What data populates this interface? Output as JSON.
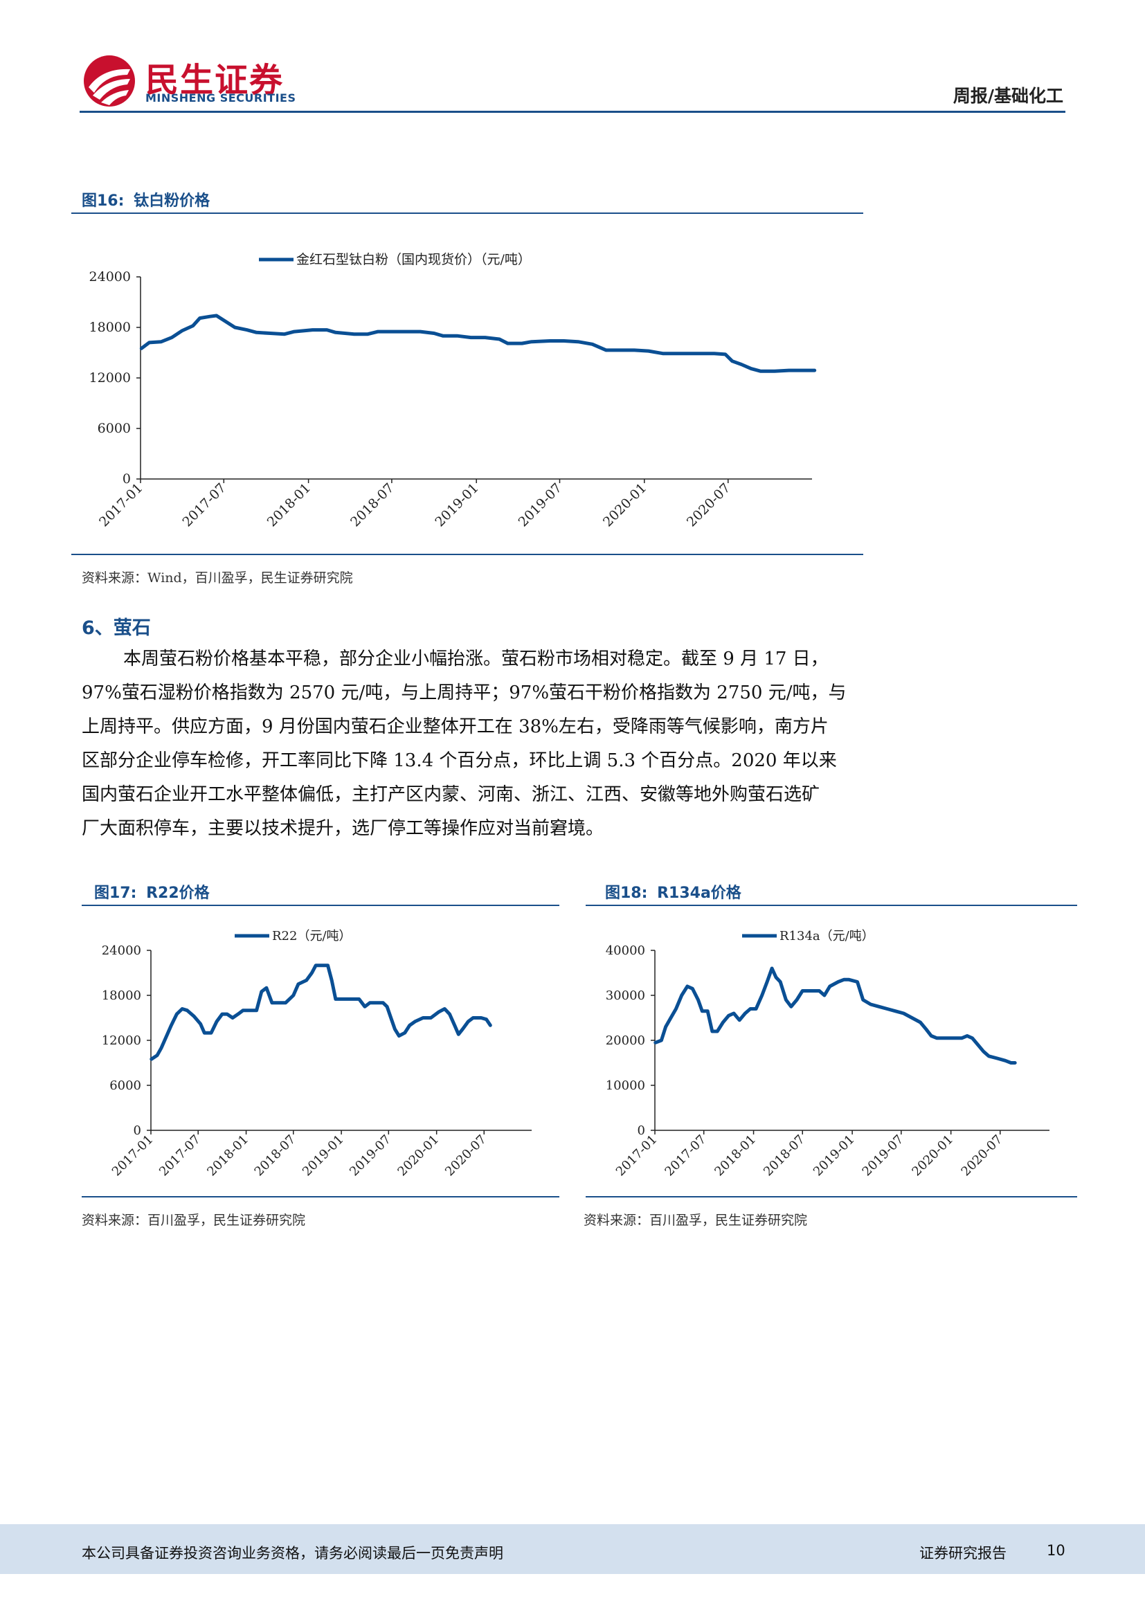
{
  "header": {
    "logo_cn": "民生证券",
    "logo_en": "MINSHENG SECURITIES",
    "category": "周报/基础化工",
    "colors": {
      "brand_red": "#c8102e",
      "brand_blue": "#1a4f8a"
    }
  },
  "figure16": {
    "label": "图16:",
    "title": "钛白粉价格",
    "source": "资料来源：Wind，百川盈孚，民生证券研究院"
  },
  "figure17": {
    "label": "图17:",
    "title": "R22价格",
    "source": "资料来源：百川盈孚，民生证券研究院"
  },
  "figure18": {
    "label": "图18:",
    "title": "R134a价格",
    "source": "资料来源：百川盈孚，民生证券研究院"
  },
  "section": {
    "heading": "6、萤石",
    "paragraph_lines": [
      "本周萤石粉价格基本平稳，部分企业小幅抬涨。萤石粉市场相对稳定。截至 9 月 17 日，",
      "97%萤石湿粉价格指数为 2570 元/吨，与上周持平；97%萤石干粉价格指数为 2750 元/吨，与",
      "上周持平。供应方面，9 月份国内萤石企业整体开工在 38%左右，受降雨等气候影响，南方片",
      "区部分企业停车检修，开工率同比下降 13.4 个百分点，环比上调 5.3 个百分点。2020 年以来",
      "国内萤石企业开工水平整体偏低，主打产区内蒙、河南、浙江、江西、安徽等地外购萤石选矿",
      "厂大面积停车，主要以技术提升，选厂停工等操作应对当前窘境。"
    ]
  },
  "footer": {
    "disclaimer": "本公司具备证券投资咨询业务资格，请务必阅读最后一页免责声明",
    "report_type": "证券研究报告",
    "page_number": "10"
  },
  "chart_data": [
    {
      "id": "fig16",
      "type": "line",
      "title": "",
      "xlabel": "",
      "ylabel": "",
      "ylim": [
        0,
        24000
      ],
      "yticks": [
        "0",
        "6000",
        "12000",
        "18000",
        "24000"
      ],
      "xtick_labels": [
        "2017-01",
        "2017-07",
        "2018-01",
        "2018-07",
        "2019-01",
        "2019-07",
        "2020-01",
        "2020-07"
      ],
      "legend": "top",
      "grid": false,
      "series": [
        {
          "name": "金红石型钛白粉（国内现货价）（元/吨）",
          "color": "#0a4f94",
          "points": [
            [
              "2017-01-03",
              15500
            ],
            [
              "2017-01-20",
              16200
            ],
            [
              "2017-02-15",
              16300
            ],
            [
              "2017-03-10",
              16800
            ],
            [
              "2017-04-01",
              17600
            ],
            [
              "2017-04-25",
              18200
            ],
            [
              "2017-05-10",
              19100
            ],
            [
              "2017-06-01",
              19300
            ],
            [
              "2017-06-15",
              19400
            ],
            [
              "2017-07-05",
              18700
            ],
            [
              "2017-07-25",
              18000
            ],
            [
              "2017-08-20",
              17700
            ],
            [
              "2017-09-10",
              17400
            ],
            [
              "2017-10-10",
              17300
            ],
            [
              "2017-11-10",
              17200
            ],
            [
              "2017-12-01",
              17500
            ],
            [
              "2018-01-10",
              17700
            ],
            [
              "2018-02-10",
              17700
            ],
            [
              "2018-03-01",
              17400
            ],
            [
              "2018-04-10",
              17200
            ],
            [
              "2018-05-10",
              17200
            ],
            [
              "2018-06-01",
              17500
            ],
            [
              "2018-08-10",
              17500
            ],
            [
              "2018-09-01",
              17500
            ],
            [
              "2018-10-01",
              17300
            ],
            [
              "2018-10-20",
              17000
            ],
            [
              "2018-11-20",
              17000
            ],
            [
              "2018-12-20",
              16800
            ],
            [
              "2019-01-20",
              16800
            ],
            [
              "2019-02-20",
              16600
            ],
            [
              "2019-03-10",
              16100
            ],
            [
              "2019-04-10",
              16100
            ],
            [
              "2019-05-01",
              16300
            ],
            [
              "2019-06-10",
              16400
            ],
            [
              "2019-07-10",
              16400
            ],
            [
              "2019-08-10",
              16300
            ],
            [
              "2019-09-10",
              16000
            ],
            [
              "2019-10-10",
              15300
            ],
            [
              "2019-11-10",
              15300
            ],
            [
              "2019-12-10",
              15300
            ],
            [
              "2020-01-10",
              15200
            ],
            [
              "2020-02-10",
              14900
            ],
            [
              "2020-03-10",
              14900
            ],
            [
              "2020-04-10",
              14900
            ],
            [
              "2020-05-10",
              14900
            ],
            [
              "2020-06-01",
              14900
            ],
            [
              "2020-06-25",
              14800
            ],
            [
              "2020-07-10",
              14000
            ],
            [
              "2020-07-30",
              13600
            ],
            [
              "2020-08-20",
              13100
            ],
            [
              "2020-09-10",
              12800
            ],
            [
              "2020-10-10",
              12800
            ],
            [
              "2020-11-10",
              12900
            ],
            [
              "2020-12-10",
              12900
            ],
            [
              "2021-01-05",
              12900
            ]
          ]
        }
      ]
    },
    {
      "id": "fig17",
      "type": "line",
      "title": "",
      "xlabel": "",
      "ylabel": "",
      "ylim": [
        0,
        24000
      ],
      "yticks": [
        "0",
        "6000",
        "12000",
        "18000",
        "24000"
      ],
      "xtick_labels": [
        "2017-01",
        "2017-07",
        "2018-01",
        "2018-07",
        "2019-01",
        "2019-07",
        "2020-01",
        "2020-07"
      ],
      "legend": "top",
      "grid": false,
      "series": [
        {
          "name": "R22（元/吨）",
          "color": "#0a4f94",
          "points": [
            [
              "2017-01-03",
              9500
            ],
            [
              "2017-01-25",
              10000
            ],
            [
              "2017-02-10",
              11000
            ],
            [
              "2017-03-01",
              12500
            ],
            [
              "2017-03-20",
              14000
            ],
            [
              "2017-04-10",
              15500
            ],
            [
              "2017-05-01",
              16200
            ],
            [
              "2017-05-20",
              16000
            ],
            [
              "2017-06-15",
              15200
            ],
            [
              "2017-07-10",
              14200
            ],
            [
              "2017-07-25",
              13000
            ],
            [
              "2017-08-20",
              13000
            ],
            [
              "2017-09-10",
              14500
            ],
            [
              "2017-10-01",
              15500
            ],
            [
              "2017-10-20",
              15500
            ],
            [
              "2017-11-10",
              15000
            ],
            [
              "2017-12-01",
              15500
            ],
            [
              "2017-12-20",
              16000
            ],
            [
              "2018-01-10",
              16000
            ],
            [
              "2018-02-10",
              16000
            ],
            [
              "2018-03-01",
              18500
            ],
            [
              "2018-03-20",
              19000
            ],
            [
              "2018-04-10",
              17000
            ],
            [
              "2018-05-01",
              17000
            ],
            [
              "2018-06-01",
              17000
            ],
            [
              "2018-07-01",
              18000
            ],
            [
              "2018-07-20",
              19500
            ],
            [
              "2018-08-20",
              20000
            ],
            [
              "2018-09-10",
              21000
            ],
            [
              "2018-09-25",
              22000
            ],
            [
              "2018-10-20",
              22000
            ],
            [
              "2018-11-10",
              22000
            ],
            [
              "2018-11-25",
              20000
            ],
            [
              "2018-12-10",
              17500
            ],
            [
              "2019-01-10",
              17500
            ],
            [
              "2019-02-10",
              17500
            ],
            [
              "2019-03-10",
              17500
            ],
            [
              "2019-04-01",
              16500
            ],
            [
              "2019-04-20",
              17000
            ],
            [
              "2019-05-10",
              17000
            ],
            [
              "2019-06-10",
              17000
            ],
            [
              "2019-06-25",
              16500
            ],
            [
              "2019-07-10",
              15000
            ],
            [
              "2019-07-25",
              13500
            ],
            [
              "2019-08-10",
              12600
            ],
            [
              "2019-09-01",
              13000
            ],
            [
              "2019-09-20",
              14000
            ],
            [
              "2019-10-10",
              14500
            ],
            [
              "2019-11-10",
              15000
            ],
            [
              "2019-12-10",
              15000
            ],
            [
              "2020-01-10",
              15800
            ],
            [
              "2020-02-01",
              16200
            ],
            [
              "2020-02-20",
              15500
            ],
            [
              "2020-03-10",
              14000
            ],
            [
              "2020-03-25",
              12800
            ],
            [
              "2020-04-10",
              13500
            ],
            [
              "2020-05-01",
              14500
            ],
            [
              "2020-05-20",
              15000
            ],
            [
              "2020-06-20",
              15000
            ],
            [
              "2020-07-10",
              14800
            ],
            [
              "2020-07-25",
              14000
            ]
          ]
        }
      ]
    },
    {
      "id": "fig18",
      "type": "line",
      "title": "",
      "xlabel": "",
      "ylabel": "",
      "ylim": [
        0,
        40000
      ],
      "yticks": [
        "0",
        "10000",
        "20000",
        "30000",
        "40000"
      ],
      "xtick_labels": [
        "2017-01",
        "2017-07",
        "2018-01",
        "2018-07",
        "2019-01",
        "2019-07",
        "2020-01",
        "2020-07"
      ],
      "legend": "top",
      "grid": false,
      "series": [
        {
          "name": "R134a（元/吨）",
          "color": "#0a4f94",
          "points": [
            [
              "2017-01-03",
              19500
            ],
            [
              "2017-01-25",
              20000
            ],
            [
              "2017-02-10",
              23000
            ],
            [
              "2017-03-01",
              25000
            ],
            [
              "2017-03-20",
              27000
            ],
            [
              "2017-04-10",
              30000
            ],
            [
              "2017-05-01",
              32000
            ],
            [
              "2017-05-20",
              31500
            ],
            [
              "2017-06-10",
              29000
            ],
            [
              "2017-06-25",
              26500
            ],
            [
              "2017-07-15",
              26500
            ],
            [
              "2017-08-01",
              22000
            ],
            [
              "2017-08-20",
              22000
            ],
            [
              "2017-09-10",
              24000
            ],
            [
              "2017-10-01",
              25500
            ],
            [
              "2017-10-20",
              26000
            ],
            [
              "2017-11-10",
              24500
            ],
            [
              "2017-12-01",
              26000
            ],
            [
              "2017-12-20",
              27000
            ],
            [
              "2018-01-10",
              27000
            ],
            [
              "2018-02-01",
              30000
            ],
            [
              "2018-02-20",
              33000
            ],
            [
              "2018-03-10",
              36000
            ],
            [
              "2018-03-25",
              34000
            ],
            [
              "2018-04-10",
              33000
            ],
            [
              "2018-05-01",
              29000
            ],
            [
              "2018-05-20",
              27500
            ],
            [
              "2018-06-10",
              29000
            ],
            [
              "2018-07-01",
              31000
            ],
            [
              "2018-08-01",
              31000
            ],
            [
              "2018-09-01",
              31000
            ],
            [
              "2018-09-20",
              30000
            ],
            [
              "2018-10-10",
              32000
            ],
            [
              "2018-11-10",
              33000
            ],
            [
              "2018-12-01",
              33500
            ],
            [
              "2018-12-20",
              33500
            ],
            [
              "2019-01-20",
              33000
            ],
            [
              "2019-02-10",
              29000
            ],
            [
              "2019-03-10",
              28000
            ],
            [
              "2019-04-10",
              27500
            ],
            [
              "2019-05-10",
              27000
            ],
            [
              "2019-06-10",
              26500
            ],
            [
              "2019-07-10",
              26000
            ],
            [
              "2019-08-10",
              25000
            ],
            [
              "2019-09-10",
              24000
            ],
            [
              "2019-10-01",
              22500
            ],
            [
              "2019-10-20",
              21000
            ],
            [
              "2019-11-10",
              20500
            ],
            [
              "2019-12-10",
              20500
            ],
            [
              "2020-01-10",
              20500
            ],
            [
              "2020-02-10",
              20500
            ],
            [
              "2020-03-01",
              21000
            ],
            [
              "2020-03-20",
              20500
            ],
            [
              "2020-04-10",
              19000
            ],
            [
              "2020-05-01",
              17500
            ],
            [
              "2020-05-20",
              16500
            ],
            [
              "2020-06-20",
              16000
            ],
            [
              "2020-07-20",
              15500
            ],
            [
              "2020-08-10",
              15000
            ],
            [
              "2020-08-25",
              15000
            ]
          ]
        }
      ]
    }
  ]
}
